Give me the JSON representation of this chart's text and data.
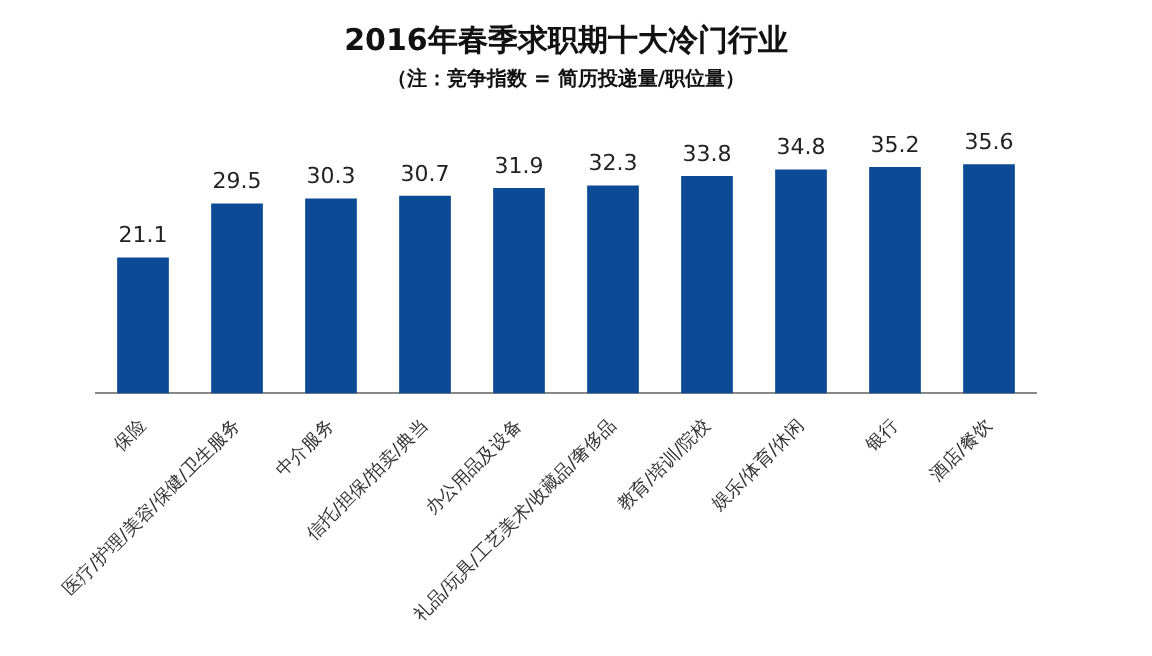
{
  "chart_data": {
    "type": "bar",
    "title": "2016年春季求职期十大冷门行业",
    "subtitle": "（注：竞争指数 = 简历投递量/职位量）",
    "categories": [
      "保险",
      "医疗/护理/美容/保健/卫生服务",
      "中介服务",
      "信托/担保/拍卖/典当",
      "办公用品及设备",
      "礼品/玩具/工艺美术/收藏品/奢侈品",
      "教育/培训/院校",
      "娱乐/体育/休闲",
      "银行",
      "酒店/餐饮"
    ],
    "values": [
      21.1,
      29.5,
      30.3,
      30.7,
      31.9,
      32.3,
      33.8,
      34.8,
      35.2,
      35.6
    ],
    "color": "#0b4a94",
    "data_labels": true,
    "grid": false,
    "legend": false
  }
}
